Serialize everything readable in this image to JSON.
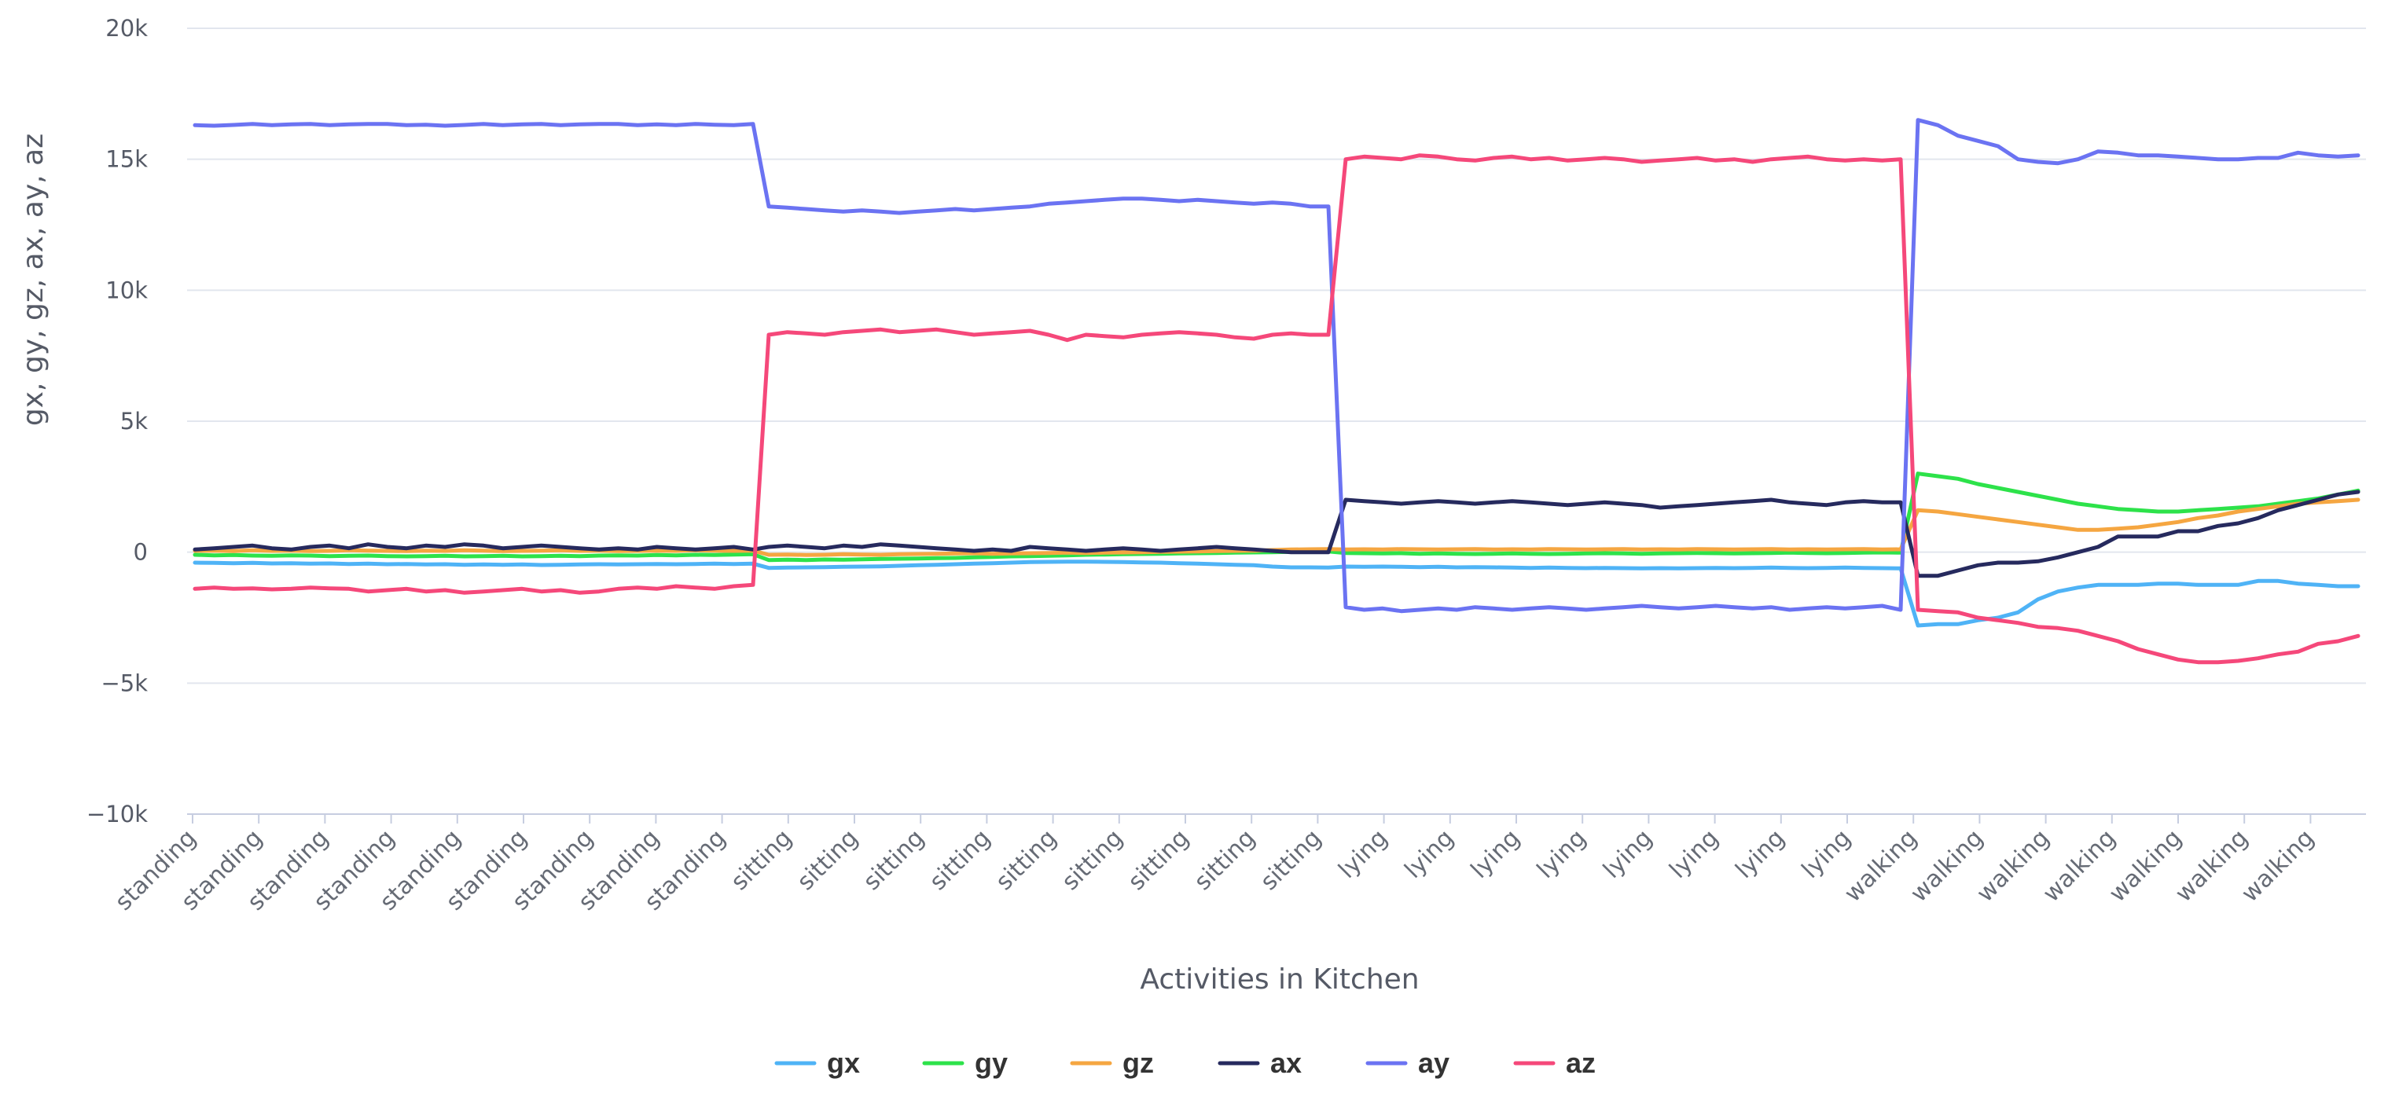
{
  "chart_data": {
    "type": "line",
    "title": "",
    "xlabel": "Activities in Kitchen",
    "ylabel": "gx, gy, gz, ax, ay, az",
    "ylim": [
      -10000,
      20000
    ],
    "y_ticks": [
      20000,
      15000,
      10000,
      5000,
      0,
      -5000,
      -10000
    ],
    "y_tick_labels": [
      "20k",
      "15k",
      "10k",
      "5k",
      "0",
      "−5k",
      "−10k"
    ],
    "grid": true,
    "legend_position": "bottom-center",
    "x_tick_labels": [
      "standing",
      "standing",
      "standing",
      "standing",
      "standing",
      "standing",
      "standing",
      "standing",
      "standing",
      "sitting",
      "sitting",
      "sitting",
      "sitting",
      "sitting",
      "sitting",
      "sitting",
      "sitting",
      "sitting",
      "lying",
      "lying",
      "lying",
      "lying",
      "lying",
      "lying",
      "lying",
      "lying",
      "walking",
      "walking",
      "walking",
      "walking",
      "walking",
      "walking",
      "walking"
    ],
    "segments": [
      {
        "activity": "standing",
        "samples": 30
      },
      {
        "activity": "sitting",
        "samples": 31
      },
      {
        "activity": "lying",
        "samples": 31
      },
      {
        "activity": "walking",
        "samples": 23
      }
    ],
    "series": [
      {
        "name": "gx",
        "color": "#4fb3f6",
        "values": [
          -400,
          -410,
          -420,
          -410,
          -430,
          -420,
          -440,
          -430,
          -450,
          -440,
          -460,
          -450,
          -470,
          -460,
          -480,
          -470,
          -480,
          -470,
          -490,
          -480,
          -470,
          -460,
          -470,
          -460,
          -450,
          -460,
          -450,
          -440,
          -450,
          -440,
          -600,
          -590,
          -580,
          -570,
          -560,
          -550,
          -540,
          -520,
          -500,
          -480,
          -460,
          -440,
          -420,
          -400,
          -380,
          -370,
          -360,
          -360,
          -370,
          -380,
          -390,
          -400,
          -420,
          -440,
          -460,
          -480,
          -500,
          -550,
          -580,
          -580,
          -590,
          -550,
          -560,
          -550,
          -560,
          -570,
          -560,
          -580,
          -570,
          -580,
          -590,
          -600,
          -590,
          -600,
          -610,
          -600,
          -610,
          -620,
          -610,
          -620,
          -610,
          -600,
          -610,
          -600,
          -590,
          -600,
          -610,
          -600,
          -590,
          -600,
          -610,
          -620,
          -2800,
          -2750,
          -2750,
          -2600,
          -2500,
          -2300,
          -1800,
          -1500,
          -1350,
          -1250,
          -1250,
          -1250,
          -1200,
          -1200,
          -1250,
          -1250,
          -1250,
          -1100,
          -1100,
          -1200,
          -1250,
          -1300,
          -1300
        ]
      },
      {
        "name": "gy",
        "color": "#2de24a",
        "values": [
          -100,
          -120,
          -110,
          -130,
          -140,
          -120,
          -130,
          -150,
          -140,
          -130,
          -150,
          -160,
          -150,
          -140,
          -160,
          -150,
          -140,
          -160,
          -150,
          -140,
          -150,
          -130,
          -120,
          -130,
          -110,
          -120,
          -100,
          -110,
          -90,
          -80,
          -300,
          -290,
          -300,
          -280,
          -290,
          -270,
          -260,
          -250,
          -240,
          -230,
          -220,
          -200,
          -180,
          -160,
          -150,
          -140,
          -120,
          -100,
          -90,
          -80,
          -70,
          -60,
          -50,
          -40,
          -30,
          -20,
          -10,
          0,
          10,
          20,
          30,
          -30,
          -40,
          -50,
          -40,
          -60,
          -50,
          -60,
          -70,
          -60,
          -50,
          -60,
          -70,
          -60,
          -50,
          -40,
          -50,
          -60,
          -50,
          -40,
          -30,
          -40,
          -50,
          -40,
          -30,
          -20,
          -30,
          -40,
          -30,
          -20,
          -10,
          -20,
          3000,
          2900,
          2800,
          2600,
          2450,
          2300,
          2150,
          2000,
          1850,
          1750,
          1650,
          1600,
          1550,
          1550,
          1600,
          1650,
          1700,
          1750,
          1850,
          1950,
          2050,
          2200,
          2350
        ]
      },
      {
        "name": "gz",
        "color": "#f5a641",
        "values": [
          50,
          60,
          40,
          70,
          50,
          60,
          40,
          50,
          70,
          60,
          50,
          40,
          60,
          50,
          70,
          60,
          40,
          50,
          60,
          70,
          50,
          60,
          40,
          50,
          60,
          50,
          70,
          60,
          50,
          60,
          -100,
          -90,
          -110,
          -100,
          -80,
          -90,
          -100,
          -80,
          -70,
          -60,
          -50,
          -40,
          -60,
          -50,
          -40,
          -30,
          -20,
          -30,
          -20,
          -10,
          0,
          10,
          20,
          30,
          40,
          50,
          60,
          80,
          100,
          110,
          120,
          100,
          110,
          100,
          120,
          110,
          100,
          110,
          120,
          100,
          110,
          100,
          120,
          110,
          100,
          110,
          120,
          100,
          110,
          100,
          120,
          110,
          100,
          110,
          120,
          100,
          110,
          100,
          110,
          120,
          100,
          110,
          1600,
          1550,
          1450,
          1350,
          1250,
          1150,
          1050,
          950,
          850,
          850,
          900,
          950,
          1050,
          1150,
          1300,
          1400,
          1550,
          1650,
          1750,
          1850,
          1900,
          1950,
          2000
        ]
      },
      {
        "name": "ax",
        "color": "#262a5e",
        "values": [
          100,
          150,
          200,
          250,
          150,
          100,
          200,
          250,
          150,
          300,
          200,
          150,
          250,
          200,
          300,
          250,
          150,
          200,
          250,
          200,
          150,
          100,
          150,
          100,
          200,
          150,
          100,
          150,
          200,
          100,
          200,
          250,
          200,
          150,
          250,
          200,
          300,
          250,
          200,
          150,
          100,
          50,
          100,
          50,
          200,
          150,
          100,
          50,
          100,
          150,
          100,
          50,
          100,
          150,
          200,
          150,
          100,
          50,
          0,
          0,
          0,
          2000,
          1950,
          1900,
          1850,
          1900,
          1950,
          1900,
          1850,
          1900,
          1950,
          1900,
          1850,
          1800,
          1850,
          1900,
          1850,
          1800,
          1700,
          1750,
          1800,
          1850,
          1900,
          1950,
          2000,
          1900,
          1850,
          1800,
          1900,
          1950,
          1900,
          1900,
          -900,
          -900,
          -700,
          -500,
          -400,
          -400,
          -350,
          -200,
          0,
          200,
          600,
          600,
          600,
          800,
          800,
          1000,
          1100,
          1300,
          1600,
          1800,
          2000,
          2200,
          2300
        ]
      },
      {
        "name": "ay",
        "color": "#6b73f2",
        "values": [
          16300,
          16280,
          16310,
          16350,
          16300,
          16330,
          16350,
          16300,
          16330,
          16350,
          16350,
          16300,
          16320,
          16280,
          16310,
          16350,
          16300,
          16330,
          16350,
          16300,
          16330,
          16350,
          16350,
          16300,
          16330,
          16300,
          16350,
          16320,
          16300,
          16350,
          13200,
          13150,
          13100,
          13050,
          13000,
          13050,
          13000,
          12950,
          13000,
          13050,
          13100,
          13050,
          13100,
          13150,
          13200,
          13300,
          13350,
          13400,
          13450,
          13500,
          13500,
          13450,
          13400,
          13450,
          13400,
          13350,
          13300,
          13350,
          13300,
          13200,
          13200,
          -2100,
          -2200,
          -2150,
          -2250,
          -2200,
          -2150,
          -2200,
          -2100,
          -2150,
          -2200,
          -2150,
          -2100,
          -2150,
          -2200,
          -2150,
          -2100,
          -2050,
          -2100,
          -2150,
          -2100,
          -2050,
          -2100,
          -2150,
          -2100,
          -2200,
          -2150,
          -2100,
          -2150,
          -2100,
          -2050,
          -2200,
          16500,
          16300,
          15900,
          15700,
          15500,
          15000,
          14900,
          14850,
          15000,
          15300,
          15250,
          15150,
          15150,
          15100,
          15050,
          15000,
          15000,
          15050,
          15050,
          15250,
          15150,
          15100,
          15150
        ]
      },
      {
        "name": "az",
        "color": "#f5487a",
        "values": [
          -1400,
          -1350,
          -1400,
          -1380,
          -1420,
          -1400,
          -1350,
          -1380,
          -1400,
          -1500,
          -1450,
          -1400,
          -1500,
          -1450,
          -1550,
          -1500,
          -1450,
          -1400,
          -1500,
          -1450,
          -1550,
          -1500,
          -1400,
          -1350,
          -1400,
          -1300,
          -1350,
          -1400,
          -1300,
          -1250,
          8300,
          8400,
          8350,
          8300,
          8400,
          8450,
          8500,
          8400,
          8450,
          8500,
          8400,
          8300,
          8350,
          8400,
          8450,
          8300,
          8100,
          8300,
          8250,
          8200,
          8300,
          8350,
          8400,
          8350,
          8300,
          8200,
          8150,
          8300,
          8350,
          8300,
          8300,
          15000,
          15100,
          15050,
          15000,
          15150,
          15100,
          15000,
          14950,
          15050,
          15100,
          15000,
          15050,
          14950,
          15000,
          15050,
          15000,
          14900,
          14950,
          15000,
          15050,
          14950,
          15000,
          14900,
          15000,
          15050,
          15100,
          15000,
          14950,
          15000,
          14950,
          15000,
          -2200,
          -2250,
          -2300,
          -2500,
          -2600,
          -2700,
          -2850,
          -2900,
          -3000,
          -3200,
          -3400,
          -3700,
          -3900,
          -4100,
          -4200,
          -4200,
          -4150,
          -4050,
          -3900,
          -3800,
          -3500,
          -3400,
          -3200
        ]
      }
    ]
  }
}
